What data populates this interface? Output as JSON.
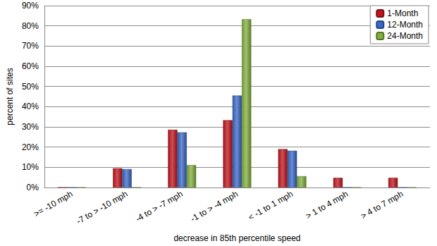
{
  "chart_data": {
    "type": "bar",
    "x_label": "decrease in 85th percentile speed",
    "y_label": "percent of sites",
    "categories": [
      ">= -10 mph",
      "-7 to > -10 mph",
      "-4 to > -7 mph",
      "-1 to > -4 mph",
      "< -1 to 1 mph",
      "> 1 to 4 mph",
      "> 4 to 7 mph"
    ],
    "series": [
      {
        "name": "1-Month",
        "color": "#c0141c",
        "values": [
          0,
          9.5,
          28.6,
          33.3,
          19.0,
          4.8,
          4.8
        ]
      },
      {
        "name": "12-Month",
        "color": "#3a68c8",
        "values": [
          0,
          9.1,
          27.3,
          45.5,
          18.2,
          0,
          0
        ]
      },
      {
        "name": "24-Month",
        "color": "#82b03c",
        "values": [
          0,
          0,
          11.1,
          83.3,
          5.6,
          0,
          0
        ]
      }
    ],
    "ylim": [
      0,
      90
    ],
    "yticks": [
      {
        "value": 0,
        "label": "0%"
      },
      {
        "value": 10,
        "label": "10%"
      },
      {
        "value": 20,
        "label": "20%"
      },
      {
        "value": 30,
        "label": "30%"
      },
      {
        "value": 40,
        "label": "40%"
      },
      {
        "value": 50,
        "label": "50%"
      },
      {
        "value": 60,
        "label": "60%"
      },
      {
        "value": 70,
        "label": "70%"
      },
      {
        "value": 80,
        "label": "80%"
      },
      {
        "value": 90,
        "label": "90%"
      }
    ],
    "grid": true,
    "legend": "upper right"
  }
}
